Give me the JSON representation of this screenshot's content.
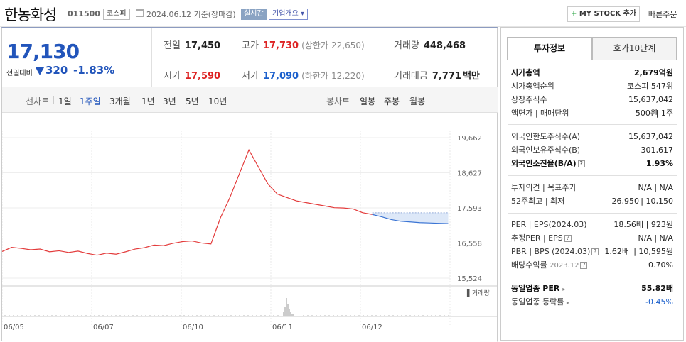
{
  "header": {
    "title": "한농화성",
    "code": "011500",
    "market_tag": "코스피",
    "as_of": "2024.06.12  기준(장마감)",
    "live_tag": "실시간",
    "corp_info": "기업개요",
    "mystock_label": "MY STOCK 추가",
    "quick_order": "빠른주문"
  },
  "price": {
    "current": "17,130",
    "change_label": "전일대비",
    "change": "320",
    "change_pct": "-1.83%",
    "prev_close_label": "전일",
    "prev_close": "17,450",
    "high_label": "고가",
    "high": "17,730",
    "upper_limit_label": "(상한가",
    "upper_limit": "22,650)",
    "volume_label": "거래량",
    "volume": "448,468",
    "open_label": "시가",
    "open": "17,590",
    "low_label": "저가",
    "low": "17,090",
    "lower_limit_label": "(하한가",
    "lower_limit": "12,220)",
    "amount_label": "거래대금",
    "amount": "7,771",
    "amount_unit": "백만"
  },
  "chart_tabs": {
    "line_label": "선차트",
    "line_items": [
      "1일",
      "1주일",
      "3개월",
      "1년",
      "3년",
      "5년",
      "10년"
    ],
    "line_active": "1주일",
    "candle_label": "봉차트",
    "candle_items": [
      "일봉",
      "주봉",
      "월봉"
    ]
  },
  "chart_data": {
    "type": "line",
    "x_ticks": [
      "06/05",
      "06/07",
      "06/10",
      "06/11",
      "06/12"
    ],
    "y_ticks": [
      19662,
      18627,
      17593,
      16558,
      15524
    ],
    "ylim": [
      15524,
      19662
    ],
    "reference_price": 17450,
    "volume_label": "거래량",
    "series": [
      {
        "values": [
          16310,
          16430,
          16400,
          16360,
          16380,
          16300,
          16330,
          16280,
          16320,
          16250,
          16200,
          16260,
          16230,
          16300,
          16380,
          16420,
          16500,
          16480,
          16550,
          16600,
          16620,
          16560,
          16530,
          17300,
          17900,
          18600,
          19300,
          18800,
          18300,
          18000,
          17900,
          17800,
          17750,
          17700,
          17650,
          17600,
          17590,
          17560,
          17450,
          17400,
          17330,
          17250,
          17200,
          17180,
          17160,
          17150,
          17140,
          17130
        ]
      }
    ]
  },
  "side": {
    "tab_invest": "투자정보",
    "tab_hoga": "호가10단계",
    "market_cap_label": "시가총액",
    "market_cap": "2,679억원",
    "cap_rank_label": "시가총액순위",
    "cap_rank": "코스피 547위",
    "shares_label": "상장주식수",
    "shares": "15,637,042",
    "par_label": "액면가 | 매매단위",
    "par": "500원",
    "unit": "1주",
    "foreign_limit_label": "외국인한도주식수(A)",
    "foreign_limit": "15,637,042",
    "foreign_hold_label": "외국인보유주식수(B)",
    "foreign_hold": "301,617",
    "foreign_ratio_label": "외국인소진율(B/A)",
    "foreign_ratio": "1.93%",
    "opinion_label": "투자의견 | 목표주가",
    "opinion": "N/A",
    "target": "N/A",
    "week52_label": "52주최고 | 최저",
    "week52_high": "26,950",
    "week52_low": "10,150",
    "per_label": "PER | EPS(2024.03)",
    "per": "18.56배",
    "eps": "923원",
    "est_label": "추정PER | EPS",
    "est_per": "N/A",
    "est_eps": "N/A",
    "pbr_label": "PBR | BPS (2024.03)",
    "pbr": "1.62배",
    "bps": "10,595원",
    "div_label": "배당수익률",
    "div_date": "2023.12",
    "div": "0.70%",
    "ind_per_label": "동일업종 PER",
    "ind_per": "55.82배",
    "ind_rate_label": "동일업종 등락률",
    "ind_rate": "-0.45%"
  }
}
